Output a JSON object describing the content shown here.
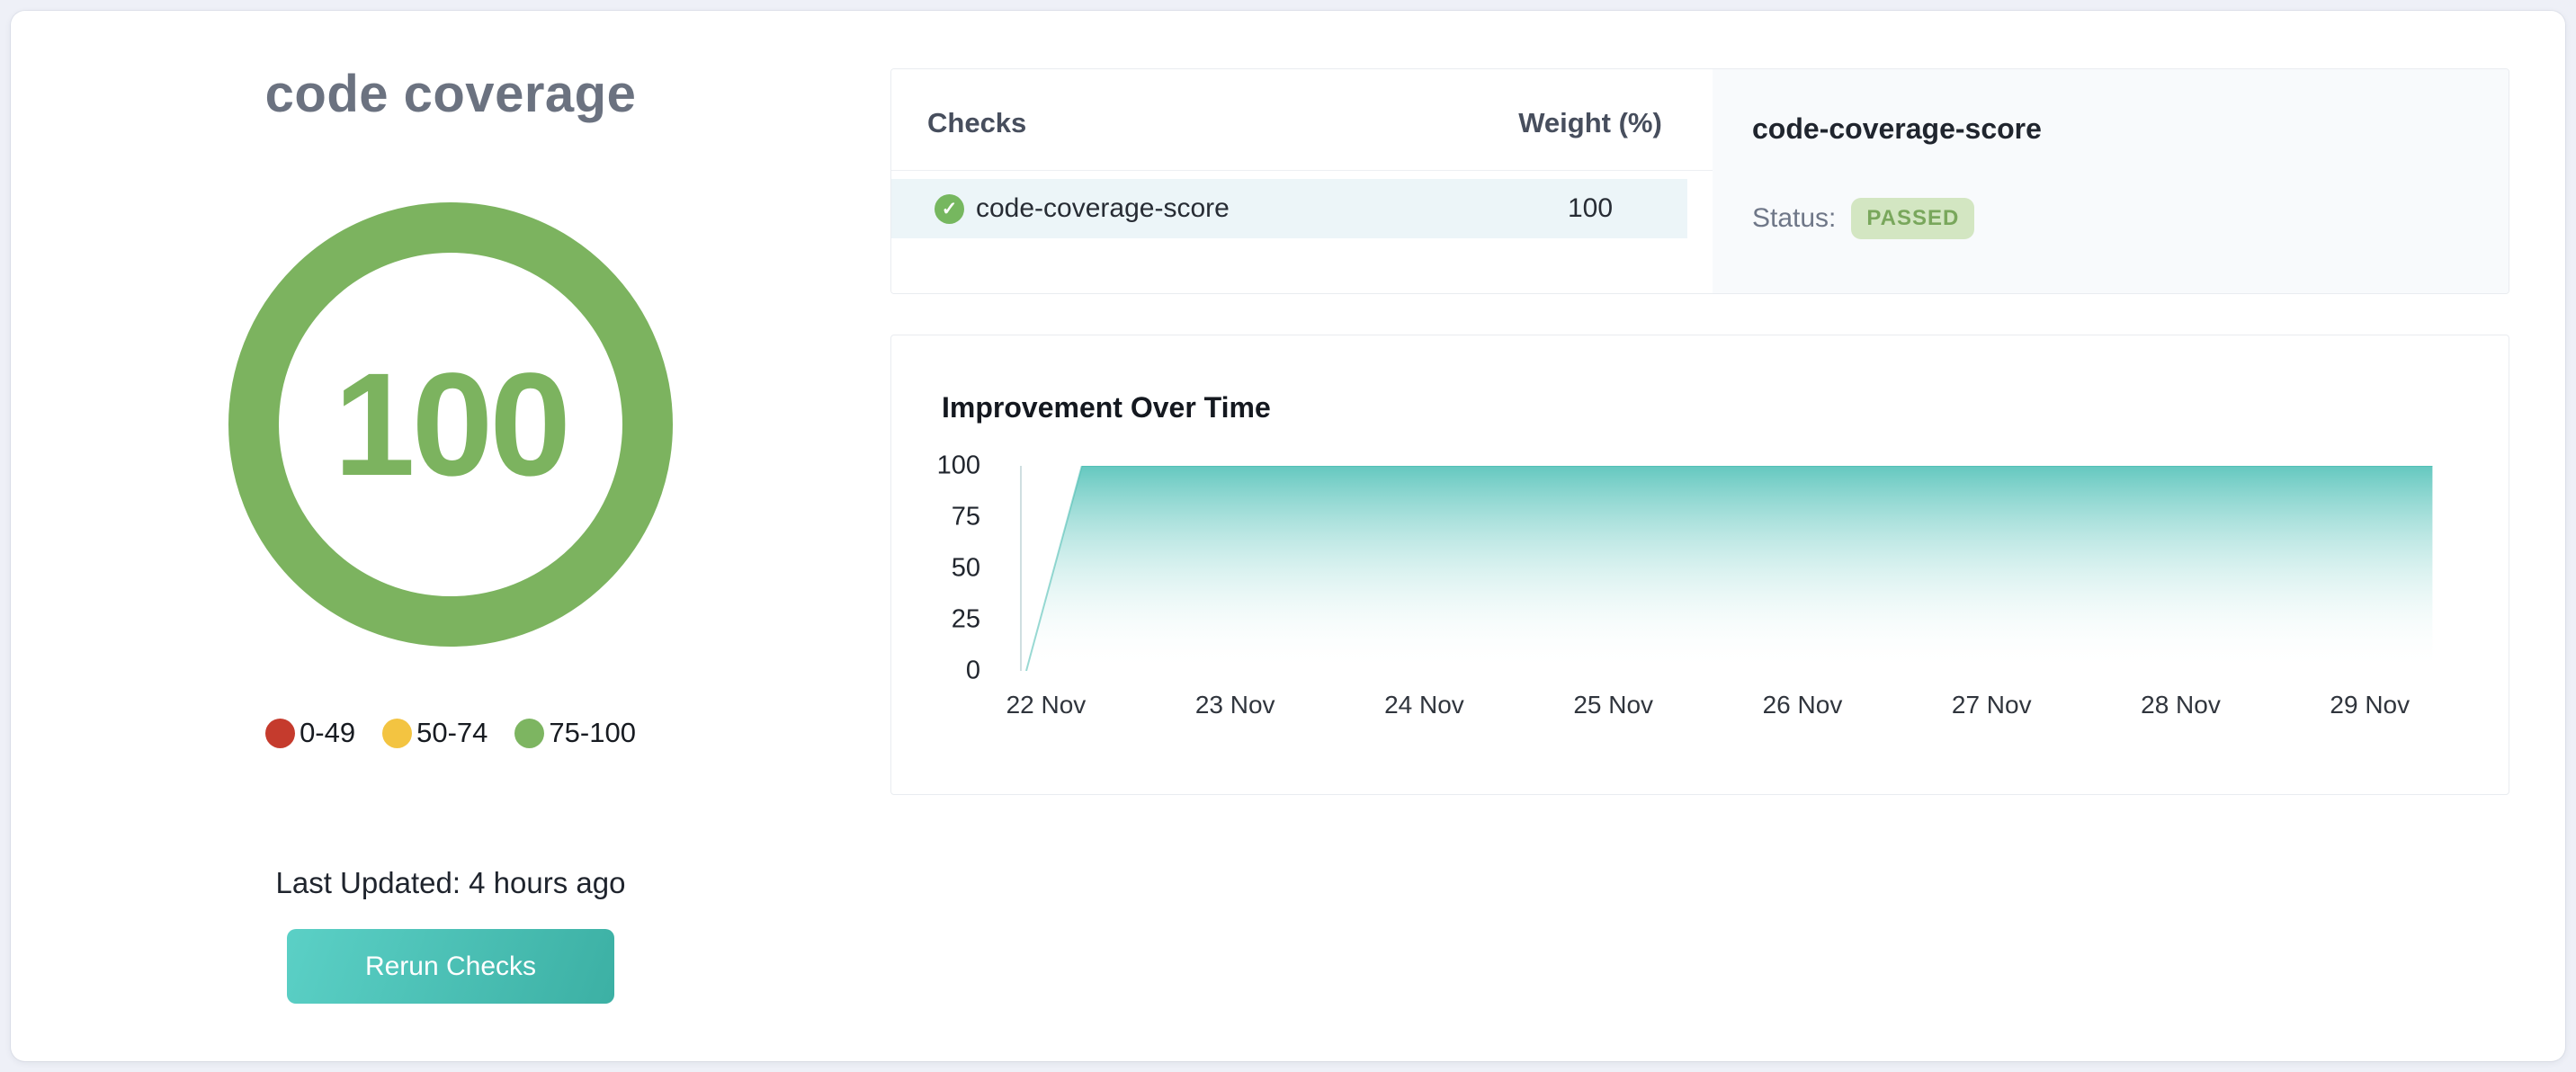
{
  "left_panel": {
    "title": "code coverage",
    "gauge": {
      "value": "100",
      "color": "#7cb35f"
    },
    "legend": [
      {
        "label": "0-49",
        "color": "#c53b2d"
      },
      {
        "label": "50-74",
        "color": "#f3c441"
      },
      {
        "label": "75-100",
        "color": "#7db561"
      }
    ],
    "last_updated": "Last Updated: 4 hours ago",
    "rerun_button_label": "Rerun Checks",
    "button_gradient": [
      "#5bd0c6",
      "#3cb0a4"
    ]
  },
  "checks_table": {
    "columns": [
      "Checks",
      "Weight (%)"
    ],
    "row_highlight_color": "#ecf5f8",
    "rows": [
      {
        "name": "code-coverage-score",
        "weight": "100",
        "status_icon": "check-circle",
        "icon_color": "#76b75f"
      }
    ]
  },
  "check_detail": {
    "title": "code-coverage-score",
    "status_label": "Status:",
    "status_value": "PASSED",
    "badge_background": "#d3e6c2",
    "badge_text_color": "#79a75c"
  },
  "chart_data": {
    "type": "area",
    "title": "Improvement Over Time",
    "x_tick_labels": [
      "22 Nov",
      "23 Nov",
      "24 Nov",
      "25 Nov",
      "26 Nov",
      "27 Nov",
      "28 Nov",
      "29 Nov"
    ],
    "y_ticks": [
      "100",
      "75",
      "50",
      "25",
      "0"
    ],
    "ylim": [
      0,
      100
    ],
    "grid": false,
    "legend_shown": false,
    "series": [
      {
        "name": "code-coverage-score",
        "points": [
          {
            "x_pct": 0.3,
            "y": 0
          },
          {
            "x_pct": 4.05,
            "y": 100
          },
          {
            "x_pct": 95.0,
            "y": 100
          }
        ]
      }
    ],
    "area_gradient": {
      "top": "#5cc5bc",
      "bottom": "rgba(255,255,255,0)"
    },
    "axis_line_color": "#cfdfe1"
  }
}
